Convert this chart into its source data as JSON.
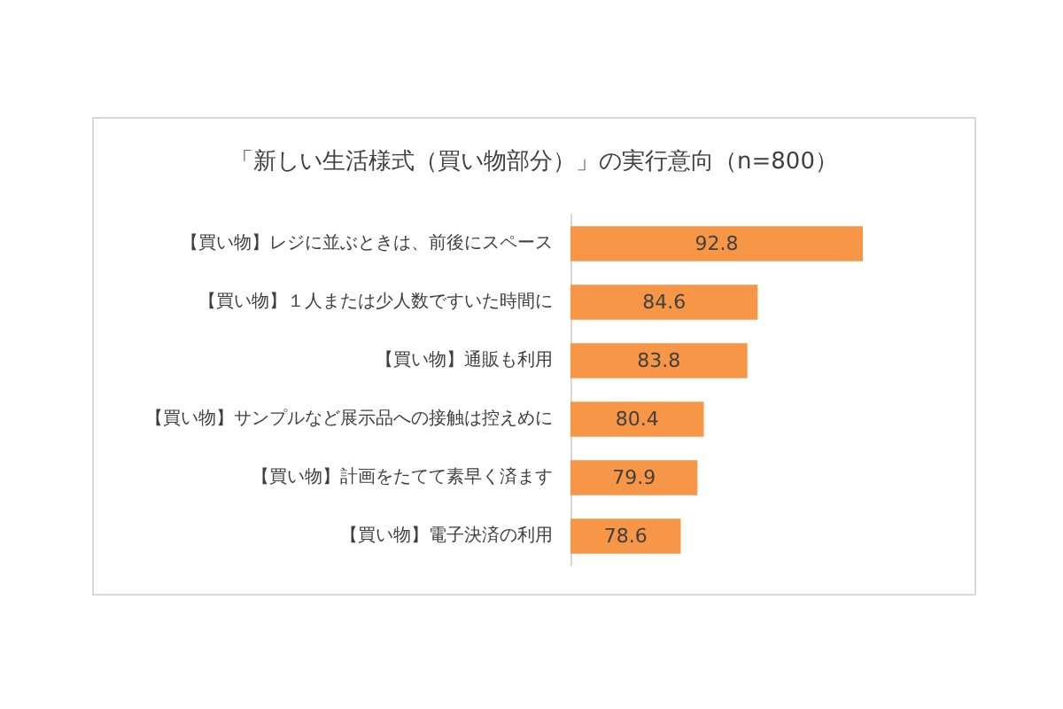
{
  "chart_data": {
    "type": "bar",
    "orientation": "horizontal",
    "title": "「新しい生活様式（買い物部分）」の実行意向（n=800）",
    "categories": [
      "【買い物】レジに並ぶときは、前後にスペース",
      "【買い物】１人または少人数ですいた時間に",
      "【買い物】通販も利用",
      "【買い物】サンプルなど展示品への接触は控えめに",
      "【買い物】計画をたてて素早く済ます",
      "【買い物】電子決済の利用"
    ],
    "values": [
      92.8,
      84.6,
      83.8,
      80.4,
      79.9,
      78.6
    ],
    "color": "#f79646",
    "xlim": [
      70,
      92.8
    ],
    "tick_labels": "y",
    "data_labels": true
  }
}
